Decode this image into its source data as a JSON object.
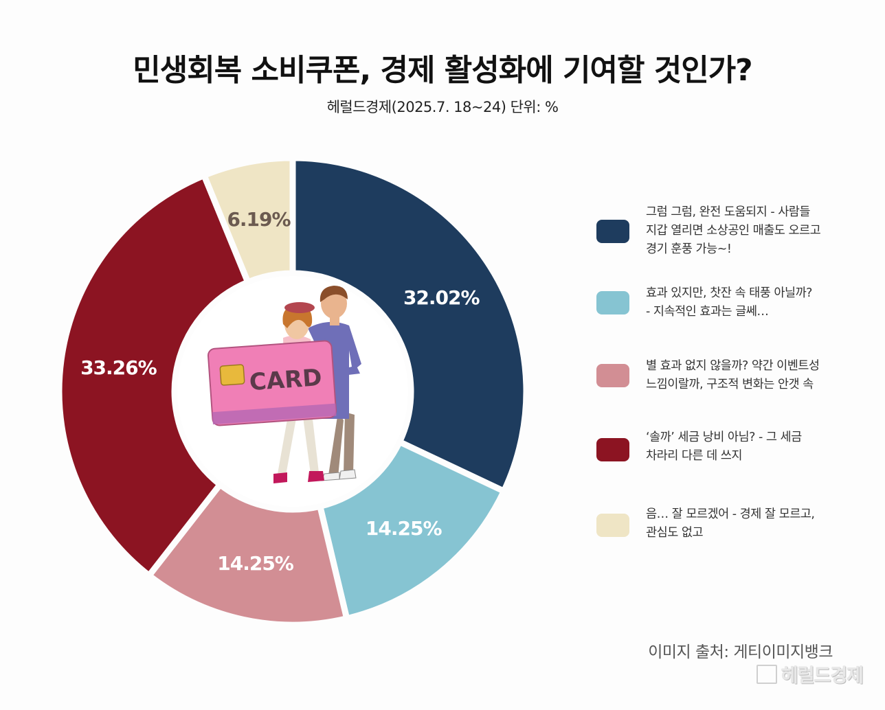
{
  "title": "민생회복 소비쿠폰, 경제 활성화에 기여할 것인가?",
  "subtitle": "헤럴드경제(2025.7. 18~24) 단위: %",
  "source": "이미지 출처: 게티이미지뱅크",
  "watermark": "헤럴드경제",
  "card_text": "CARD",
  "chart_data": {
    "type": "pie",
    "title": "민생회복 소비쿠폰, 경제 활성화에 기여할 것인가?",
    "subtitle": "헤럴드경제(2025.7. 18~24) 단위: %",
    "unit": "%",
    "donut": true,
    "legend_position": "right",
    "categories": [
      "그럼 그럼, 완전 도움되지 - 사람들 지갑 열리면 소상공인 매출도 오르고 경기 훈풍 가능~!",
      "효과 있지만, 찻잔 속 태풍 아닐까? - 지속적인 효과는 글쎄…",
      "별 효과 없지 않을까? 약간 이벤트성 느낌이랄까, 구조적 변화는 안갯 속",
      "‘솔까’ 세금 낭비 아님? - 그 세금 차라리 다른 데 쓰지",
      "음… 잘 모르겠어 - 경제 잘 모르고, 관심도 없고"
    ],
    "values": [
      32.02,
      14.25,
      14.25,
      33.26,
      6.19
    ],
    "value_labels": [
      "32.02%",
      "14.25%",
      "14.25%",
      "33.26%",
      "6.19%"
    ],
    "colors": [
      "#1e3c5e",
      "#86c4d2",
      "#d28e94",
      "#8c1422",
      "#efe5c5"
    ],
    "label_colors": [
      "#ffffff",
      "#ffffff",
      "#ffffff",
      "#ffffff",
      "#6b5a50"
    ]
  },
  "legend": [
    {
      "text": "그럼 그럼, 완전 도움되지 - 사람들\n지갑 열리면 소상공인 매출도 오르고\n경기 훈풍 가능~!",
      "color": "#1e3c5e"
    },
    {
      "text": "효과 있지만, 찻잔 속 태풍 아닐까?\n- 지속적인 효과는 글쎄…",
      "color": "#86c4d2"
    },
    {
      "text": "별 효과 없지 않을까? 약간 이벤트성\n느낌이랄까, 구조적 변화는 안갯 속",
      "color": "#d28e94"
    },
    {
      "text": "‘솔까’ 세금 낭비 아님? - 그 세금\n차라리 다른 데 쓰지",
      "color": "#8c1422"
    },
    {
      "text": "음… 잘 모르겠어 - 경제 잘 모르고,\n관심도 없고",
      "color": "#efe5c5"
    }
  ]
}
